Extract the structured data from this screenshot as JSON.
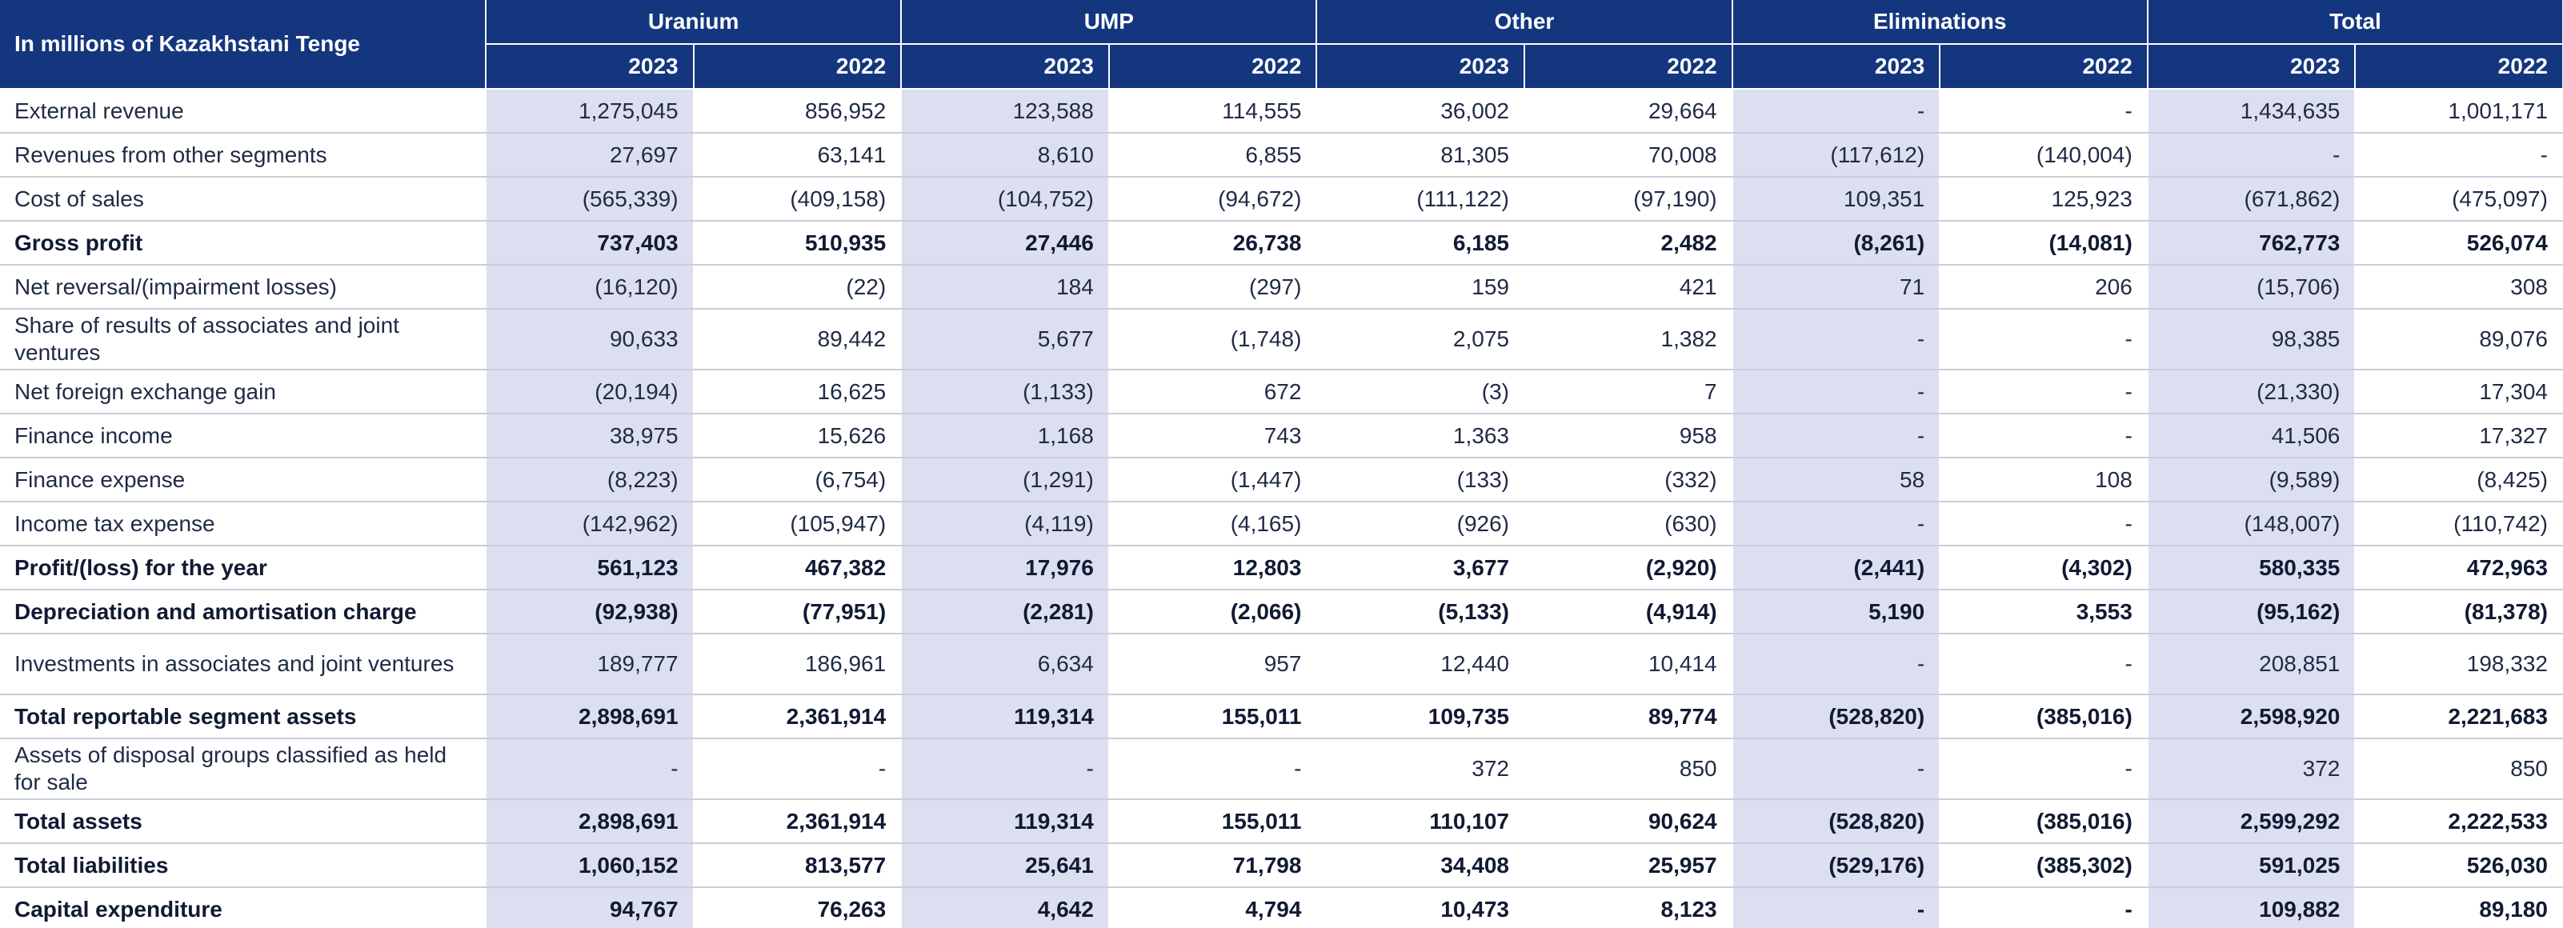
{
  "header": {
    "corner_label": "In millions of Kazakhstani Tenge",
    "groups": [
      "Uranium",
      "UMP",
      "Other",
      "Eliminations",
      "Total"
    ],
    "years": [
      "2023",
      "2022"
    ]
  },
  "rows": [
    {
      "label": "External revenue",
      "bold": false,
      "tall": false,
      "values": [
        "1,275,045",
        "856,952",
        "123,588",
        "114,555",
        "36,002",
        "29,664",
        "-",
        "-",
        "1,434,635",
        "1,001,171"
      ]
    },
    {
      "label": "Revenues from other segments",
      "bold": false,
      "tall": false,
      "values": [
        "27,697",
        "63,141",
        "8,610",
        "6,855",
        "81,305",
        "70,008",
        "(117,612)",
        "(140,004)",
        "-",
        "-"
      ]
    },
    {
      "label": "Cost of sales",
      "bold": false,
      "tall": false,
      "values": [
        "(565,339)",
        "(409,158)",
        "(104,752)",
        "(94,672)",
        "(111,122)",
        "(97,190)",
        "109,351",
        "125,923",
        "(671,862)",
        "(475,097)"
      ]
    },
    {
      "label": "Gross profit",
      "bold": true,
      "tall": false,
      "values": [
        "737,403",
        "510,935",
        "27,446",
        "26,738",
        "6,185",
        "2,482",
        "(8,261)",
        "(14,081)",
        "762,773",
        "526,074"
      ]
    },
    {
      "label": "Net reversal/(impairment losses)",
      "bold": false,
      "tall": false,
      "values": [
        "(16,120)",
        "(22)",
        "184",
        "(297)",
        "159",
        "421",
        "71",
        "206",
        "(15,706)",
        "308"
      ]
    },
    {
      "label": "Share of results of associates and joint ventures",
      "bold": false,
      "tall": true,
      "values": [
        "90,633",
        "89,442",
        "5,677",
        "(1,748)",
        "2,075",
        "1,382",
        "-",
        "-",
        "98,385",
        "89,076"
      ]
    },
    {
      "label": "Net foreign exchange gain",
      "bold": false,
      "tall": false,
      "values": [
        "(20,194)",
        "16,625",
        "(1,133)",
        "672",
        "(3)",
        "7",
        "-",
        "-",
        "(21,330)",
        "17,304"
      ]
    },
    {
      "label": "Finance income",
      "bold": false,
      "tall": false,
      "values": [
        "38,975",
        "15,626",
        "1,168",
        "743",
        "1,363",
        "958",
        "-",
        "-",
        "41,506",
        "17,327"
      ]
    },
    {
      "label": "Finance expense",
      "bold": false,
      "tall": false,
      "values": [
        "(8,223)",
        "(6,754)",
        "(1,291)",
        "(1,447)",
        "(133)",
        "(332)",
        "58",
        "108",
        "(9,589)",
        "(8,425)"
      ]
    },
    {
      "label": "Income tax expense",
      "bold": false,
      "tall": false,
      "values": [
        "(142,962)",
        "(105,947)",
        "(4,119)",
        "(4,165)",
        "(926)",
        "(630)",
        "-",
        "-",
        "(148,007)",
        "(110,742)"
      ]
    },
    {
      "label": "Profit/(loss) for the year",
      "bold": true,
      "tall": false,
      "values": [
        "561,123",
        "467,382",
        "17,976",
        "12,803",
        "3,677",
        "(2,920)",
        "(2,441)",
        "(4,302)",
        "580,335",
        "472,963"
      ]
    },
    {
      "label": "Depreciation and amortisation charge",
      "bold": true,
      "tall": false,
      "values": [
        "(92,938)",
        "(77,951)",
        "(2,281)",
        "(2,066)",
        "(5,133)",
        "(4,914)",
        "5,190",
        "3,553",
        "(95,162)",
        "(81,378)"
      ]
    },
    {
      "label": "Investments in associates and joint ventures",
      "bold": false,
      "tall": true,
      "values": [
        "189,777",
        "186,961",
        "6,634",
        "957",
        "12,440",
        "10,414",
        "-",
        "-",
        "208,851",
        "198,332"
      ]
    },
    {
      "label": "Total reportable segment assets",
      "bold": true,
      "tall": false,
      "values": [
        "2,898,691",
        "2,361,914",
        "119,314",
        "155,011",
        "109,735",
        "89,774",
        "(528,820)",
        "(385,016)",
        "2,598,920",
        "2,221,683"
      ]
    },
    {
      "label": "Assets of disposal groups classified as held for sale",
      "bold": false,
      "tall": true,
      "values": [
        "-",
        "-",
        "-",
        "-",
        "372",
        "850",
        "-",
        "-",
        "372",
        "850"
      ]
    },
    {
      "label": "Total assets",
      "bold": true,
      "tall": false,
      "values": [
        "2,898,691",
        "2,361,914",
        "119,314",
        "155,011",
        "110,107",
        "90,624",
        "(528,820)",
        "(385,016)",
        "2,599,292",
        "2,222,533"
      ]
    },
    {
      "label": "Total liabilities",
      "bold": true,
      "tall": false,
      "values": [
        "1,060,152",
        "813,577",
        "25,641",
        "71,798",
        "34,408",
        "25,957",
        "(529,176)",
        "(385,302)",
        "591,025",
        "526,030"
      ]
    },
    {
      "label": "Capital expenditure",
      "bold": true,
      "tall": false,
      "values": [
        "94,767",
        "76,263",
        "4,642",
        "4,794",
        "10,473",
        "8,123",
        "-",
        "-",
        "109,882",
        "89,180"
      ]
    }
  ]
}
